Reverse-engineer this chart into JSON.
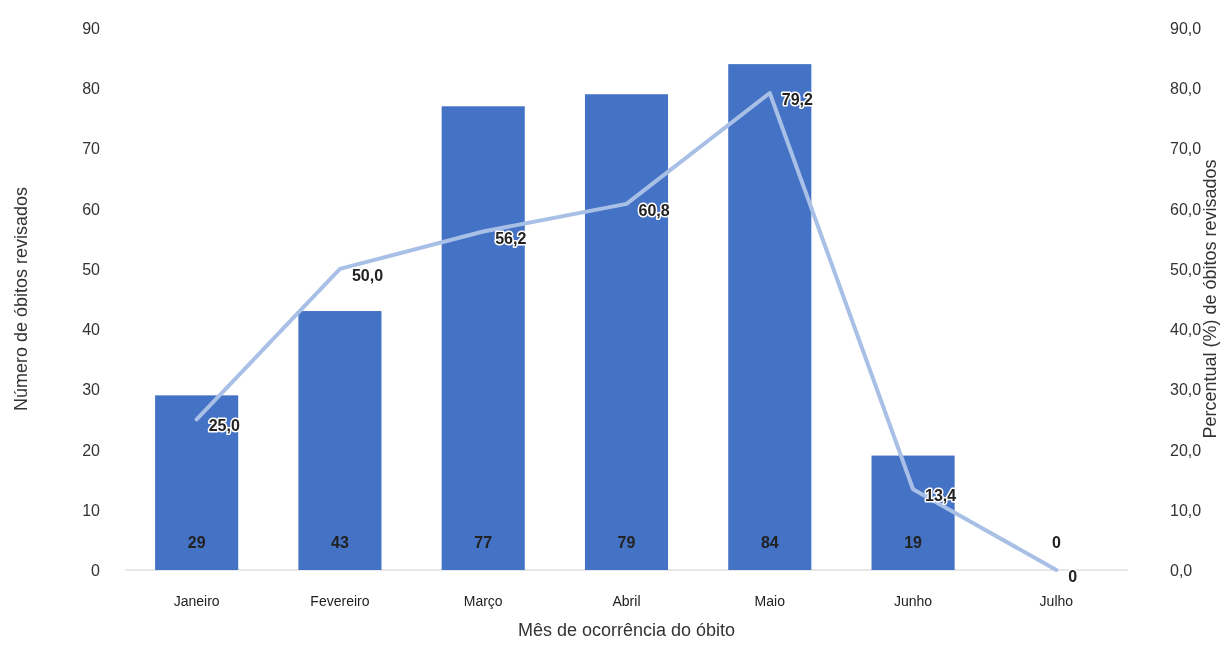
{
  "chart_data": {
    "type": "bar",
    "xlabel": "Mês de ocorrência do óbito",
    "ylabel": "Número de óbitos revisados",
    "y2label": "Percentual (%) de óbitos revisados",
    "categories": [
      "Janeiro",
      "Fevereiro",
      "Março",
      "Abril",
      "Maio",
      "Junho",
      "Julho"
    ],
    "series": [
      {
        "color": "#4472c4",
        "values": [
          29,
          43,
          77,
          79,
          84,
          19,
          0
        ],
        "value_labels": [
          "29",
          "43",
          "77",
          "79",
          "84",
          "19",
          "0"
        ]
      },
      {
        "type": "line",
        "axis": "y2",
        "color": "#a8bfe6",
        "values": [
          25.0,
          50.0,
          56.2,
          60.8,
          79.2,
          13.4,
          0
        ],
        "value_labels": [
          "25,0",
          "50,0",
          "56,2",
          "60,8",
          "79,2",
          "13,4",
          "0"
        ]
      }
    ],
    "ylim": [
      0,
      90
    ],
    "yticks": [
      0,
      10,
      20,
      30,
      40,
      50,
      60,
      70,
      80,
      90
    ],
    "y2lim": [
      0,
      90
    ],
    "y2ticks": [
      {
        "value": 0,
        "label": "0,0"
      },
      {
        "value": 10,
        "label": "10,0"
      },
      {
        "value": 20,
        "label": "20,0"
      },
      {
        "value": 30,
        "label": "30,0"
      },
      {
        "value": 40,
        "label": "40,0"
      },
      {
        "value": 50,
        "label": "50,0"
      },
      {
        "value": 60,
        "label": "60,0"
      },
      {
        "value": 70,
        "label": "70,0"
      },
      {
        "value": 80,
        "label": "80,0"
      },
      {
        "value": 90,
        "label": "90,0"
      }
    ],
    "marker": "none"
  }
}
